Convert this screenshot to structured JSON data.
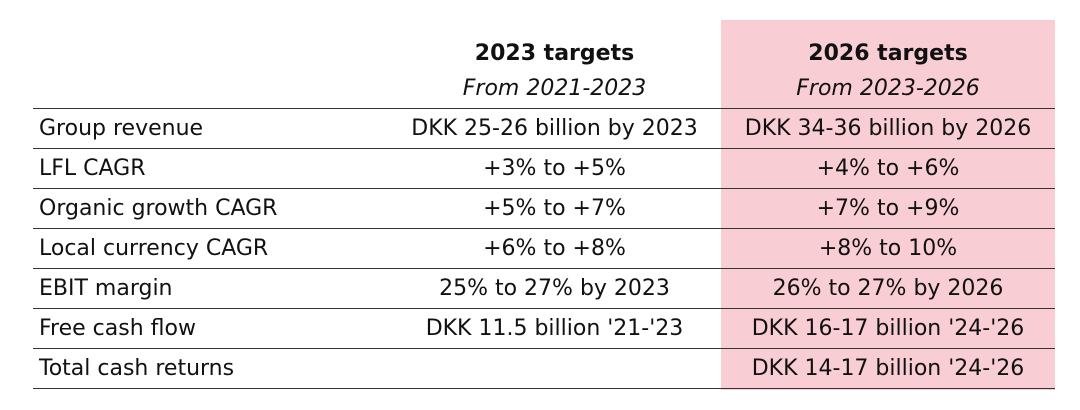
{
  "header": {
    "col_2023_title": "2023 targets",
    "col_2023_sub": "From 2021-2023",
    "col_2026_title": "2026 targets",
    "col_2026_sub": "From 2023-2026"
  },
  "rows": [
    {
      "label": "Group revenue",
      "t2023": "DKK 25-26 billion by 2023",
      "t2026": "DKK 34-36 billion by 2026"
    },
    {
      "label": "LFL CAGR",
      "t2023": "+3% to +5%",
      "t2026": "+4% to +6%"
    },
    {
      "label": "Organic growth CAGR",
      "t2023": "+5% to +7%",
      "t2026": "+7% to +9%"
    },
    {
      "label": "Local currency CAGR",
      "t2023": "+6% to +8%",
      "t2026": "+8% to 10%"
    },
    {
      "label": "EBIT margin",
      "t2023": "25% to 27% by 2023",
      "t2026": "26% to 27% by 2026"
    },
    {
      "label": "Free cash flow",
      "t2023": "DKK 11.5 billion '21-'23",
      "t2026": "DKK 16-17 billion '24-'26"
    },
    {
      "label": "Total cash returns",
      "t2023": "",
      "t2026": "DKK 14-17 billion '24-'26"
    }
  ],
  "colors": {
    "highlight": "#f8cdd3",
    "rule": "#333333"
  }
}
